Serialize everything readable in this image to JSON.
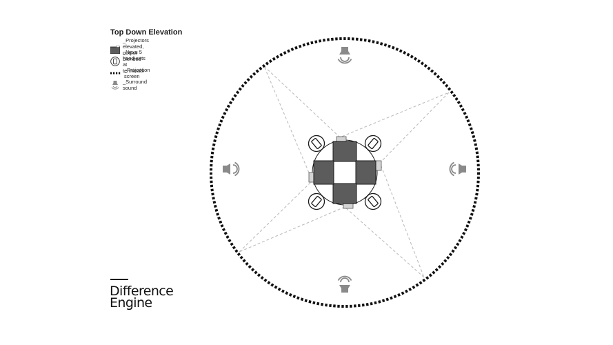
{
  "title": "Top Down Elevation",
  "legend": [
    {
      "icon": "projector-icon",
      "label": "_Projectors elevated, output blended"
    },
    {
      "icon": "handset-icon",
      "label": "_Nexu 5 hand-sets at terminals"
    },
    {
      "icon": "projection-screen-icon",
      "label": "_Projection screen"
    },
    {
      "icon": "speaker-icon",
      "label": "_Surround sound"
    }
  ],
  "brand": {
    "line1": "Difference",
    "line2": "Engine"
  },
  "colors": {
    "projector": "#5c5c5c",
    "speaker": "#8a8a8a",
    "screen": "#111111",
    "beam": "#bdbdbd"
  }
}
